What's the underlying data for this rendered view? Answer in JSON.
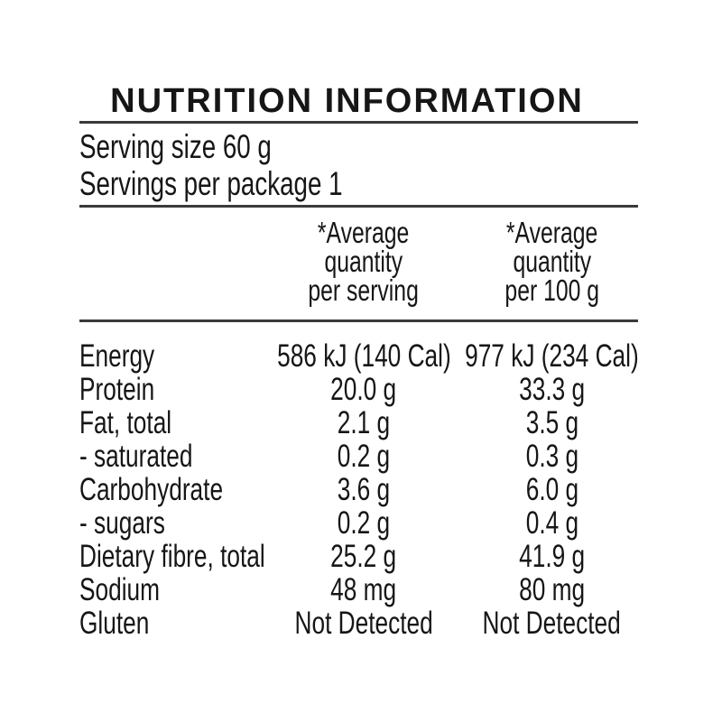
{
  "title": "NUTRITION INFORMATION",
  "serving": {
    "size": "Serving size 60 g",
    "per_package": "Servings per package 1"
  },
  "columns": [
    {
      "name": "per-serving",
      "lines": [
        "*Average",
        "quantity",
        "per serving"
      ]
    },
    {
      "name": "per-100g",
      "lines": [
        "*Average",
        "quantity",
        "per 100 g"
      ]
    }
  ],
  "rows": [
    {
      "label": "Energy",
      "per_serving": "586 kJ (140 Cal)",
      "per_100g": "977 kJ (234 Cal)"
    },
    {
      "label": "Protein",
      "per_serving": "20.0 g",
      "per_100g": "33.3 g"
    },
    {
      "label": "Fat, total",
      "per_serving": "2.1 g",
      "per_100g": "3.5 g"
    },
    {
      "label": "- saturated",
      "per_serving": "0.2 g",
      "per_100g": "0.3 g"
    },
    {
      "label": "Carbohydrate",
      "per_serving": "3.6 g",
      "per_100g": "6.0 g"
    },
    {
      "label": "- sugars",
      "per_serving": "0.2 g",
      "per_100g": "0.4 g"
    },
    {
      "label": "Dietary fibre, total",
      "per_serving": "25.2 g",
      "per_100g": "41.9 g"
    },
    {
      "label": "Sodium",
      "per_serving": "48 mg",
      "per_100g": "80 mg"
    },
    {
      "label": "Gluten",
      "per_serving": "Not Detected",
      "per_100g": "Not Detected"
    }
  ],
  "colors": {
    "text": "#161616",
    "rule": "#3a3a3a",
    "background": "#ffffff"
  }
}
